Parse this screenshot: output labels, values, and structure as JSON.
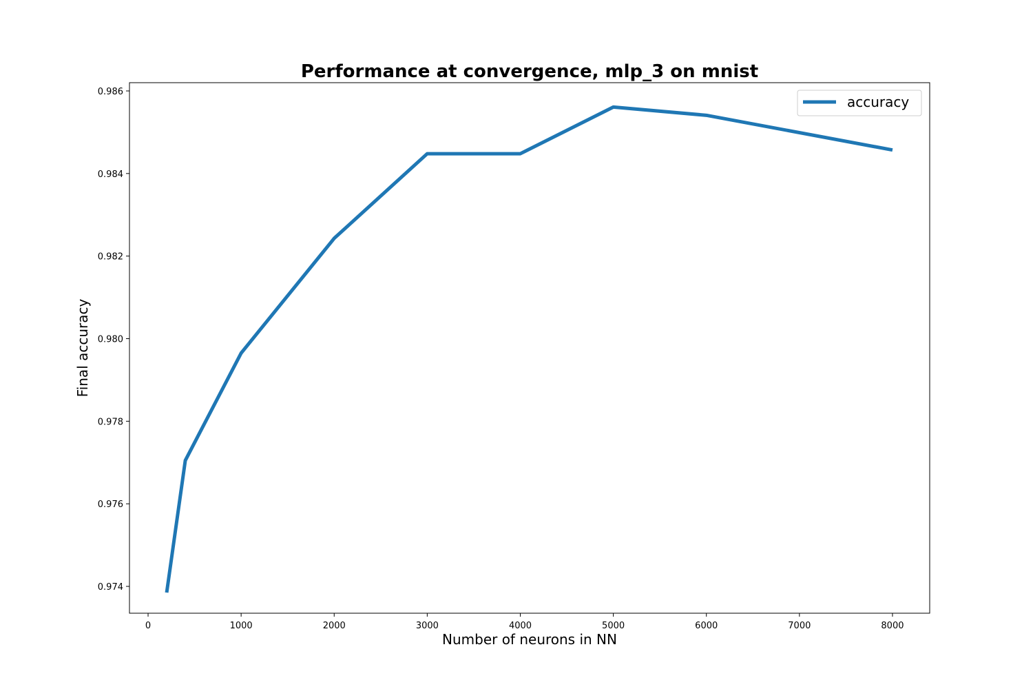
{
  "chart_data": {
    "type": "line",
    "title": "Performance at convergence, mlp_3 on mnist",
    "xlabel": "Number of neurons in NN",
    "ylabel": "Final accuracy",
    "xlim": [
      -200,
      8400
    ],
    "ylim": [
      0.97335,
      0.9862
    ],
    "xticks": [
      0,
      1000,
      2000,
      3000,
      4000,
      5000,
      6000,
      7000,
      8000
    ],
    "xtick_labels": [
      "0",
      "1000",
      "2000",
      "3000",
      "4000",
      "5000",
      "6000",
      "7000",
      "8000"
    ],
    "yticks": [
      0.974,
      0.976,
      0.978,
      0.98,
      0.982,
      0.984,
      0.986
    ],
    "ytick_labels": [
      "0.974",
      "0.976",
      "0.978",
      "0.980",
      "0.982",
      "0.984",
      "0.986"
    ],
    "grid": false,
    "legend_position": "top-right",
    "series": [
      {
        "name": "accuracy",
        "color": "#1f77b4",
        "x": [
          200,
          400,
          1000,
          2000,
          3000,
          4000,
          5000,
          6000,
          8000
        ],
        "y": [
          0.97385,
          0.97705,
          0.97965,
          0.98243,
          0.98448,
          0.98448,
          0.98561,
          0.98541,
          0.98457
        ]
      }
    ]
  }
}
